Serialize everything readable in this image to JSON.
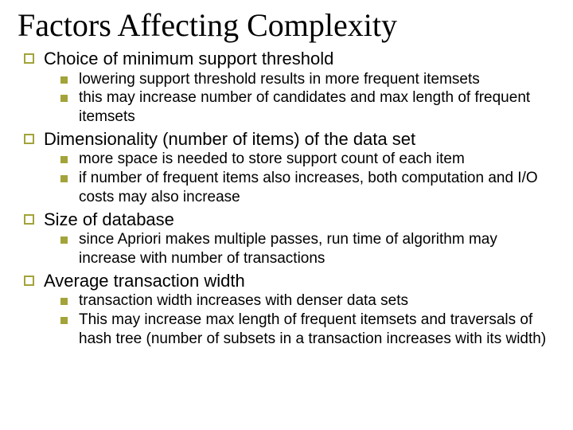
{
  "colors": {
    "accent": "#a3a33a",
    "text": "#000000",
    "background": "#ffffff"
  },
  "typography": {
    "title_family": "Times New Roman",
    "body_family": "Verdana",
    "title_fontsize": 40,
    "l1_fontsize": 22,
    "l2_fontsize": 19
  },
  "title": "Factors Affecting Complexity",
  "sections": [
    {
      "heading": "Choice of minimum support threshold",
      "items": [
        " lowering support threshold results in more frequent itemsets",
        " this may increase number of candidates and max length of frequent itemsets"
      ]
    },
    {
      "heading": "Dimensionality (number of items) of the data set",
      "items": [
        " more space is needed to store support count of each item",
        " if number of frequent items also increases, both computation and I/O costs may also increase"
      ]
    },
    {
      "heading": "Size of database",
      "items": [
        " since Apriori makes multiple passes, run time of algorithm may increase with number of transactions"
      ]
    },
    {
      "heading": "Average transaction width",
      "items": [
        " transaction width increases with denser data sets",
        "This may increase max length of frequent itemsets and traversals of hash tree (number of subsets in a transaction increases with its width)"
      ]
    }
  ]
}
